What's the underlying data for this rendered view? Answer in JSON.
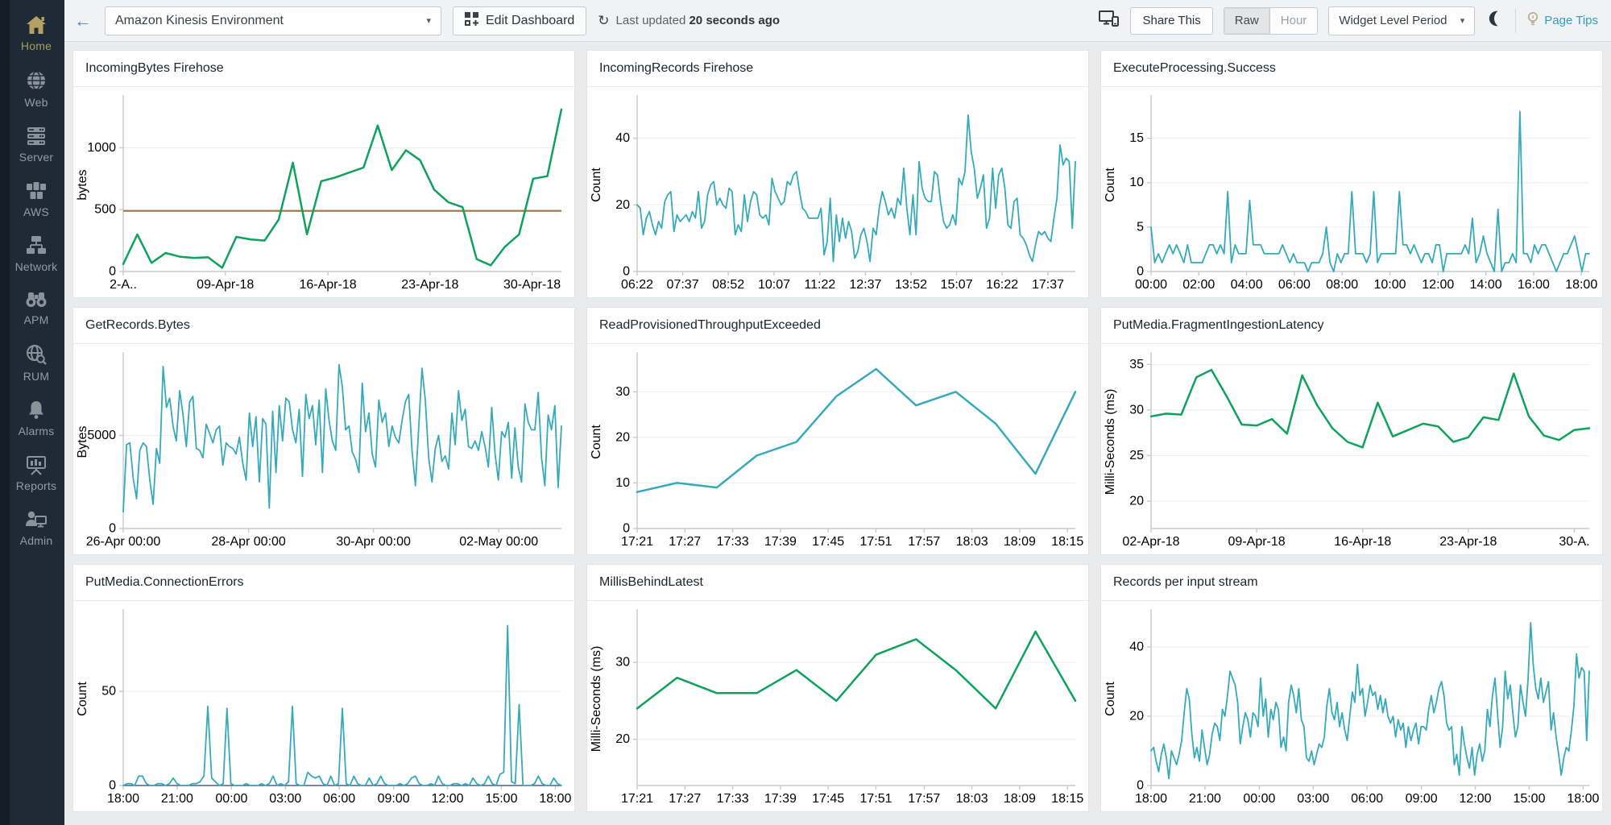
{
  "sidebar": {
    "items": [
      {
        "label": "Home",
        "icon": "home-icon",
        "active": true
      },
      {
        "label": "Web",
        "icon": "globe-icon",
        "active": false
      },
      {
        "label": "Server",
        "icon": "server-icon",
        "active": false
      },
      {
        "label": "AWS",
        "icon": "aws-cubes-icon",
        "active": false
      },
      {
        "label": "Network",
        "icon": "network-icon",
        "active": false
      },
      {
        "label": "APM",
        "icon": "binoculars-icon",
        "active": false
      },
      {
        "label": "RUM",
        "icon": "globe-search-icon",
        "active": false
      },
      {
        "label": "Alarms",
        "icon": "bell-icon",
        "active": false
      },
      {
        "label": "Reports",
        "icon": "presentation-icon",
        "active": false
      },
      {
        "label": "Admin",
        "icon": "admin-user-icon",
        "active": false
      }
    ]
  },
  "topbar": {
    "environment_selector": "Amazon Kinesis Environment",
    "edit_dashboard": "Edit Dashboard",
    "last_updated_prefix": "Last updated",
    "last_updated_value": "20 seconds ago",
    "share_this": "Share This",
    "period_raw": "Raw",
    "period_hour": "Hour",
    "widget_level_period": "Widget Level Period",
    "page_tips": "Page Tips"
  },
  "colors": {
    "teal_line": "#35aaba",
    "green_line": "#0ea25c",
    "threshold_brown": "#9c6f44",
    "baseline_navy": "#3d4e84",
    "sidebar_bg": "#1e2a36",
    "active_gold": "#b3a262",
    "page_tips_blue": "#2e9fc4"
  },
  "chart_data": [
    {
      "type": "line",
      "title": "IncomingBytes Firehose",
      "color": "#0ea25c",
      "ylabel": "bytes",
      "ylim": [
        0,
        1400
      ],
      "yticks": [
        0,
        500,
        1000
      ],
      "xticks": {
        "labels": [
          "2-A..",
          "09-Apr-18",
          "16-Apr-18",
          "23-Apr-18",
          "30-Apr-18"
        ],
        "pos": [
          0,
          0.233,
          0.467,
          0.7,
          0.933
        ]
      },
      "threshold": {
        "value": 490,
        "color": "#9c6f44"
      },
      "values": [
        60,
        300,
        70,
        150,
        120,
        110,
        115,
        30,
        280,
        260,
        250,
        420,
        880,
        300,
        730,
        760,
        800,
        840,
        1180,
        820,
        980,
        900,
        660,
        560,
        520,
        100,
        50,
        200,
        300,
        750,
        770,
        1310
      ]
    },
    {
      "type": "line",
      "title": "IncomingRecords Firehose",
      "color": "#35aaba",
      "ylabel": "Count",
      "ylim": [
        0,
        52
      ],
      "yticks": [
        0,
        20,
        40
      ],
      "xticks": {
        "labels": [
          "06:22",
          "07:37",
          "08:52",
          "10:07",
          "11:22",
          "12:37",
          "13:52",
          "15:07",
          "16:22",
          "17:37"
        ],
        "pos": [
          0,
          0.104,
          0.208,
          0.3125,
          0.417,
          0.521,
          0.625,
          0.729,
          0.833,
          0.9375
        ]
      },
      "values": [
        20,
        19,
        11,
        16,
        18,
        14,
        11,
        15,
        13,
        21,
        23,
        24,
        12,
        17,
        15,
        16,
        17,
        15,
        18,
        16,
        24,
        13,
        15,
        23,
        26,
        27,
        20,
        22,
        20,
        19,
        25,
        24,
        11,
        14,
        12,
        23,
        15,
        21,
        24,
        23,
        17,
        16,
        17,
        14,
        28,
        24,
        22,
        20,
        21,
        27,
        26,
        29,
        30,
        24,
        19,
        18,
        16,
        16,
        16,
        16,
        19,
        5,
        9,
        22,
        3,
        17,
        9,
        16,
        10,
        15,
        12,
        4,
        6,
        11,
        13,
        9,
        3,
        13,
        11,
        19,
        24,
        21,
        17,
        19,
        16,
        22,
        20,
        31,
        19,
        11,
        23,
        11,
        33,
        25,
        22,
        21,
        21,
        30,
        29,
        21,
        15,
        13,
        14,
        17,
        14,
        28,
        26,
        30,
        47,
        36,
        31,
        22,
        25,
        29,
        13,
        16,
        31,
        19,
        29,
        31,
        25,
        14,
        13,
        21,
        22,
        11,
        10,
        8,
        5,
        3,
        8,
        12,
        11,
        12,
        10,
        9,
        16,
        22,
        38,
        32,
        34,
        33,
        13,
        33
      ]
    },
    {
      "type": "line",
      "title": "ExecuteProcessing.Success",
      "color": "#35aaba",
      "ylabel": "Count",
      "ylim": [
        0,
        19.5
      ],
      "yticks": [
        0,
        5,
        10,
        15
      ],
      "xticks": {
        "labels": [
          "00:00",
          "02:00",
          "04:00",
          "06:00",
          "08:00",
          "10:00",
          "12:00",
          "14:00",
          "16:00",
          "18:00"
        ],
        "pos": [
          0,
          0.109,
          0.218,
          0.327,
          0.436,
          0.545,
          0.655,
          0.764,
          0.873,
          0.982
        ]
      },
      "values": [
        5,
        1,
        2,
        1,
        2,
        3,
        2,
        3,
        2,
        1,
        3,
        1,
        1,
        1,
        1,
        2,
        3,
        3,
        2,
        3,
        2,
        9,
        1,
        3,
        2,
        2,
        2,
        8,
        3,
        3,
        3,
        2,
        2,
        2,
        2,
        2,
        3,
        2,
        1,
        2,
        1,
        1,
        1,
        0,
        1,
        1,
        1,
        2,
        5,
        1,
        0,
        2,
        1,
        2,
        2,
        9,
        2,
        2,
        2,
        1,
        2,
        9,
        1,
        2,
        2,
        2,
        2,
        2,
        9,
        3,
        3,
        2,
        3,
        2,
        1,
        2,
        2,
        1,
        3,
        3,
        0,
        2,
        2,
        2,
        2,
        2,
        3,
        2,
        6,
        1,
        2,
        4,
        2,
        1,
        0,
        7,
        0,
        1,
        1,
        2,
        1,
        18,
        2,
        2,
        1,
        3,
        2,
        3,
        3,
        2,
        1,
        0,
        1,
        2,
        2,
        3,
        4,
        2,
        0,
        2,
        2
      ]
    },
    {
      "type": "line",
      "title": "GetRecords.Bytes",
      "color": "#35aaba",
      "ylabel": "Bytes",
      "ylim": [
        0,
        9300
      ],
      "yticks": [
        0,
        5000
      ],
      "xticks": {
        "labels": [
          "26-Apr 00:00",
          "28-Apr 00:00",
          "30-Apr 00:00",
          "02-May 00:00"
        ],
        "pos": [
          0,
          0.286,
          0.571,
          0.857
        ]
      },
      "values": [
        900,
        4500,
        4600,
        2700,
        1600,
        4200,
        4600,
        4400,
        2600,
        1300,
        4300,
        3500,
        8700,
        6500,
        7000,
        5500,
        4700,
        7400,
        6100,
        4400,
        6800,
        7100,
        4300,
        4200,
        3800,
        5600,
        5100,
        4600,
        5300,
        5500,
        3400,
        4600,
        4400,
        4300,
        4000,
        4900,
        3500,
        2600,
        6200,
        4400,
        6000,
        2500,
        5900,
        5600,
        1100,
        6300,
        3000,
        6600,
        4700,
        7000,
        6800,
        5300,
        4600,
        6400,
        2800,
        7200,
        5900,
        6600,
        4500,
        6900,
        3000,
        7500,
        5800,
        4700,
        4200,
        8800,
        7600,
        5300,
        5500,
        4100,
        3700,
        3000,
        7800,
        5200,
        6200,
        4000,
        3300,
        6900,
        5700,
        6200,
        4400,
        5500,
        4900,
        4600,
        5800,
        6800,
        7200,
        4200,
        2300,
        5400,
        8600,
        6900,
        3800,
        2500,
        4300,
        5000,
        3600,
        3900,
        3200,
        6200,
        4500,
        7400,
        5800,
        6400,
        4400,
        4300,
        4700,
        4200,
        5200,
        4400,
        3300,
        6500,
        4000,
        2600,
        5200,
        4900,
        5700,
        2700,
        5400,
        3300,
        2500,
        6700,
        5700,
        5300,
        5300,
        7300,
        3800,
        2300,
        6100,
        5300,
        6600,
        2200,
        5500
      ]
    },
    {
      "type": "line",
      "title": "ReadProvisionedThroughputExceeded",
      "color": "#35aaba",
      "ylabel": "Count",
      "ylim": [
        0,
        38
      ],
      "yticks": [
        0,
        10,
        20,
        30
      ],
      "xticks": {
        "labels": [
          "17:21",
          "17:27",
          "17:33",
          "17:39",
          "17:45",
          "17:51",
          "17:57",
          "18:03",
          "18:09",
          "18:15"
        ],
        "pos": [
          0,
          0.109,
          0.218,
          0.327,
          0.436,
          0.545,
          0.655,
          0.764,
          0.873,
          0.982
        ]
      },
      "values": [
        8,
        10,
        9,
        16,
        19,
        29,
        35,
        27,
        30,
        23,
        12,
        30
      ]
    },
    {
      "type": "line",
      "title": "PutMedia.FragmentIngestionLatency",
      "color": "#0ea25c",
      "ylabel": "Milli-Seconds (ms)",
      "ylim": [
        17,
        36
      ],
      "yticks": [
        20,
        25,
        30,
        35
      ],
      "xticks": {
        "labels": [
          "02-Apr-18",
          "09-Apr-18",
          "16-Apr-18",
          "23-Apr-18",
          "30-A."
        ],
        "pos": [
          0,
          0.241,
          0.483,
          0.724,
          0.966
        ]
      },
      "values": [
        29.3,
        29.6,
        29.5,
        33.6,
        34.4,
        31.5,
        28.4,
        28.3,
        29.0,
        27.4,
        33.8,
        30.5,
        28.0,
        26.5,
        25.9,
        30.8,
        27.1,
        27.8,
        28.5,
        28.2,
        26.5,
        27.0,
        29.2,
        28.9,
        34.0,
        29.3,
        27.2,
        26.7,
        27.8,
        28.0
      ]
    },
    {
      "type": "line",
      "title": "PutMedia.ConnectionErrors",
      "color": "#35aaba",
      "ylabel": "Count",
      "ylim": [
        0,
        92
      ],
      "yticks": [
        0,
        50
      ],
      "xticks": {
        "labels": [
          "18:00",
          "21:00",
          "00:00",
          "03:00",
          "06:00",
          "09:00",
          "12:00",
          "15:00",
          "18:00"
        ],
        "pos": [
          0,
          0.123,
          0.247,
          0.37,
          0.493,
          0.617,
          0.74,
          0.863,
          0.986
        ]
      },
      "baseline": {
        "value": 0,
        "color": "#3d4e84"
      },
      "values": [
        0,
        1,
        1,
        0,
        5,
        5,
        1,
        0,
        0,
        1,
        1,
        0,
        1,
        4,
        1,
        0,
        0,
        0,
        1,
        1,
        2,
        5,
        42,
        4,
        2,
        0,
        1,
        41,
        1,
        0,
        0,
        0,
        1,
        0,
        0,
        0,
        1,
        0,
        1,
        5,
        0,
        1,
        0,
        2,
        42,
        1,
        0,
        0,
        7,
        5,
        4,
        5,
        1,
        0,
        5,
        0,
        1,
        41,
        1,
        0,
        5,
        1,
        0,
        0,
        4,
        0,
        1,
        5,
        1,
        0,
        0,
        0,
        1,
        0,
        1,
        4,
        5,
        1,
        0,
        0,
        1,
        0,
        5,
        1,
        0,
        0,
        1,
        1,
        0,
        1,
        0,
        4,
        1,
        0,
        1,
        5,
        1,
        0,
        6,
        7,
        85,
        2,
        1,
        43,
        0,
        0,
        0,
        1,
        5,
        1,
        0,
        0,
        4,
        1,
        0
      ]
    },
    {
      "type": "line",
      "title": "MillisBehindLatest",
      "color": "#0ea25c",
      "ylabel": "Milli-Seconds (ms)",
      "ylim": [
        14,
        36.5
      ],
      "yticks": [
        20,
        30
      ],
      "xticks": {
        "labels": [
          "17:21",
          "17:27",
          "17:33",
          "17:39",
          "17:45",
          "17:51",
          "17:57",
          "18:03",
          "18:09",
          "18:15"
        ],
        "pos": [
          0,
          0.109,
          0.218,
          0.327,
          0.436,
          0.545,
          0.655,
          0.764,
          0.873,
          0.982
        ]
      },
      "values": [
        24,
        28,
        26,
        26,
        29,
        25,
        31,
        33,
        29,
        24,
        34,
        25
      ]
    },
    {
      "type": "line",
      "title": "Records per input stream",
      "color": "#35aaba",
      "ylabel": "Count",
      "ylim": [
        0,
        50
      ],
      "yticks": [
        0,
        20,
        40
      ],
      "xticks": {
        "labels": [
          "18:00",
          "21:00",
          "00:00",
          "03:00",
          "06:00",
          "09:00",
          "12:00",
          "15:00",
          "18:00"
        ],
        "pos": [
          0,
          0.123,
          0.247,
          0.37,
          0.493,
          0.617,
          0.74,
          0.863,
          0.986
        ]
      },
      "values": [
        10,
        11,
        7,
        4,
        9,
        12,
        8,
        2,
        10,
        8,
        6,
        9,
        13,
        21,
        28,
        25,
        15,
        8,
        11,
        7,
        16,
        11,
        6,
        9,
        15,
        18,
        17,
        13,
        22,
        20,
        26,
        33,
        31,
        29,
        24,
        12,
        17,
        21,
        19,
        14,
        21,
        20,
        17,
        31,
        20,
        25,
        14,
        22,
        19,
        24,
        22,
        11,
        14,
        10,
        24,
        29,
        26,
        21,
        28,
        19,
        17,
        8,
        7,
        10,
        6,
        9,
        12,
        11,
        14,
        23,
        28,
        21,
        19,
        24,
        17,
        21,
        16,
        13,
        20,
        27,
        24,
        35,
        26,
        28,
        20,
        24,
        29,
        26,
        27,
        22,
        26,
        21,
        25,
        20,
        18,
        20,
        14,
        19,
        16,
        18,
        11,
        17,
        13,
        16,
        18,
        12,
        17,
        17,
        16,
        22,
        26,
        21,
        24,
        28,
        30,
        26,
        18,
        16,
        17,
        6,
        9,
        3,
        17,
        12,
        8,
        5,
        11,
        3,
        9,
        12,
        7,
        10,
        22,
        17,
        26,
        31,
        21,
        11,
        17,
        33,
        25,
        29,
        21,
        14,
        17,
        29,
        24,
        20,
        31,
        47,
        35,
        28,
        25,
        31,
        24,
        27,
        30,
        16,
        21,
        14,
        9,
        3,
        8,
        11,
        10,
        16,
        23,
        38,
        31,
        34,
        33,
        13,
        33
      ]
    }
  ]
}
